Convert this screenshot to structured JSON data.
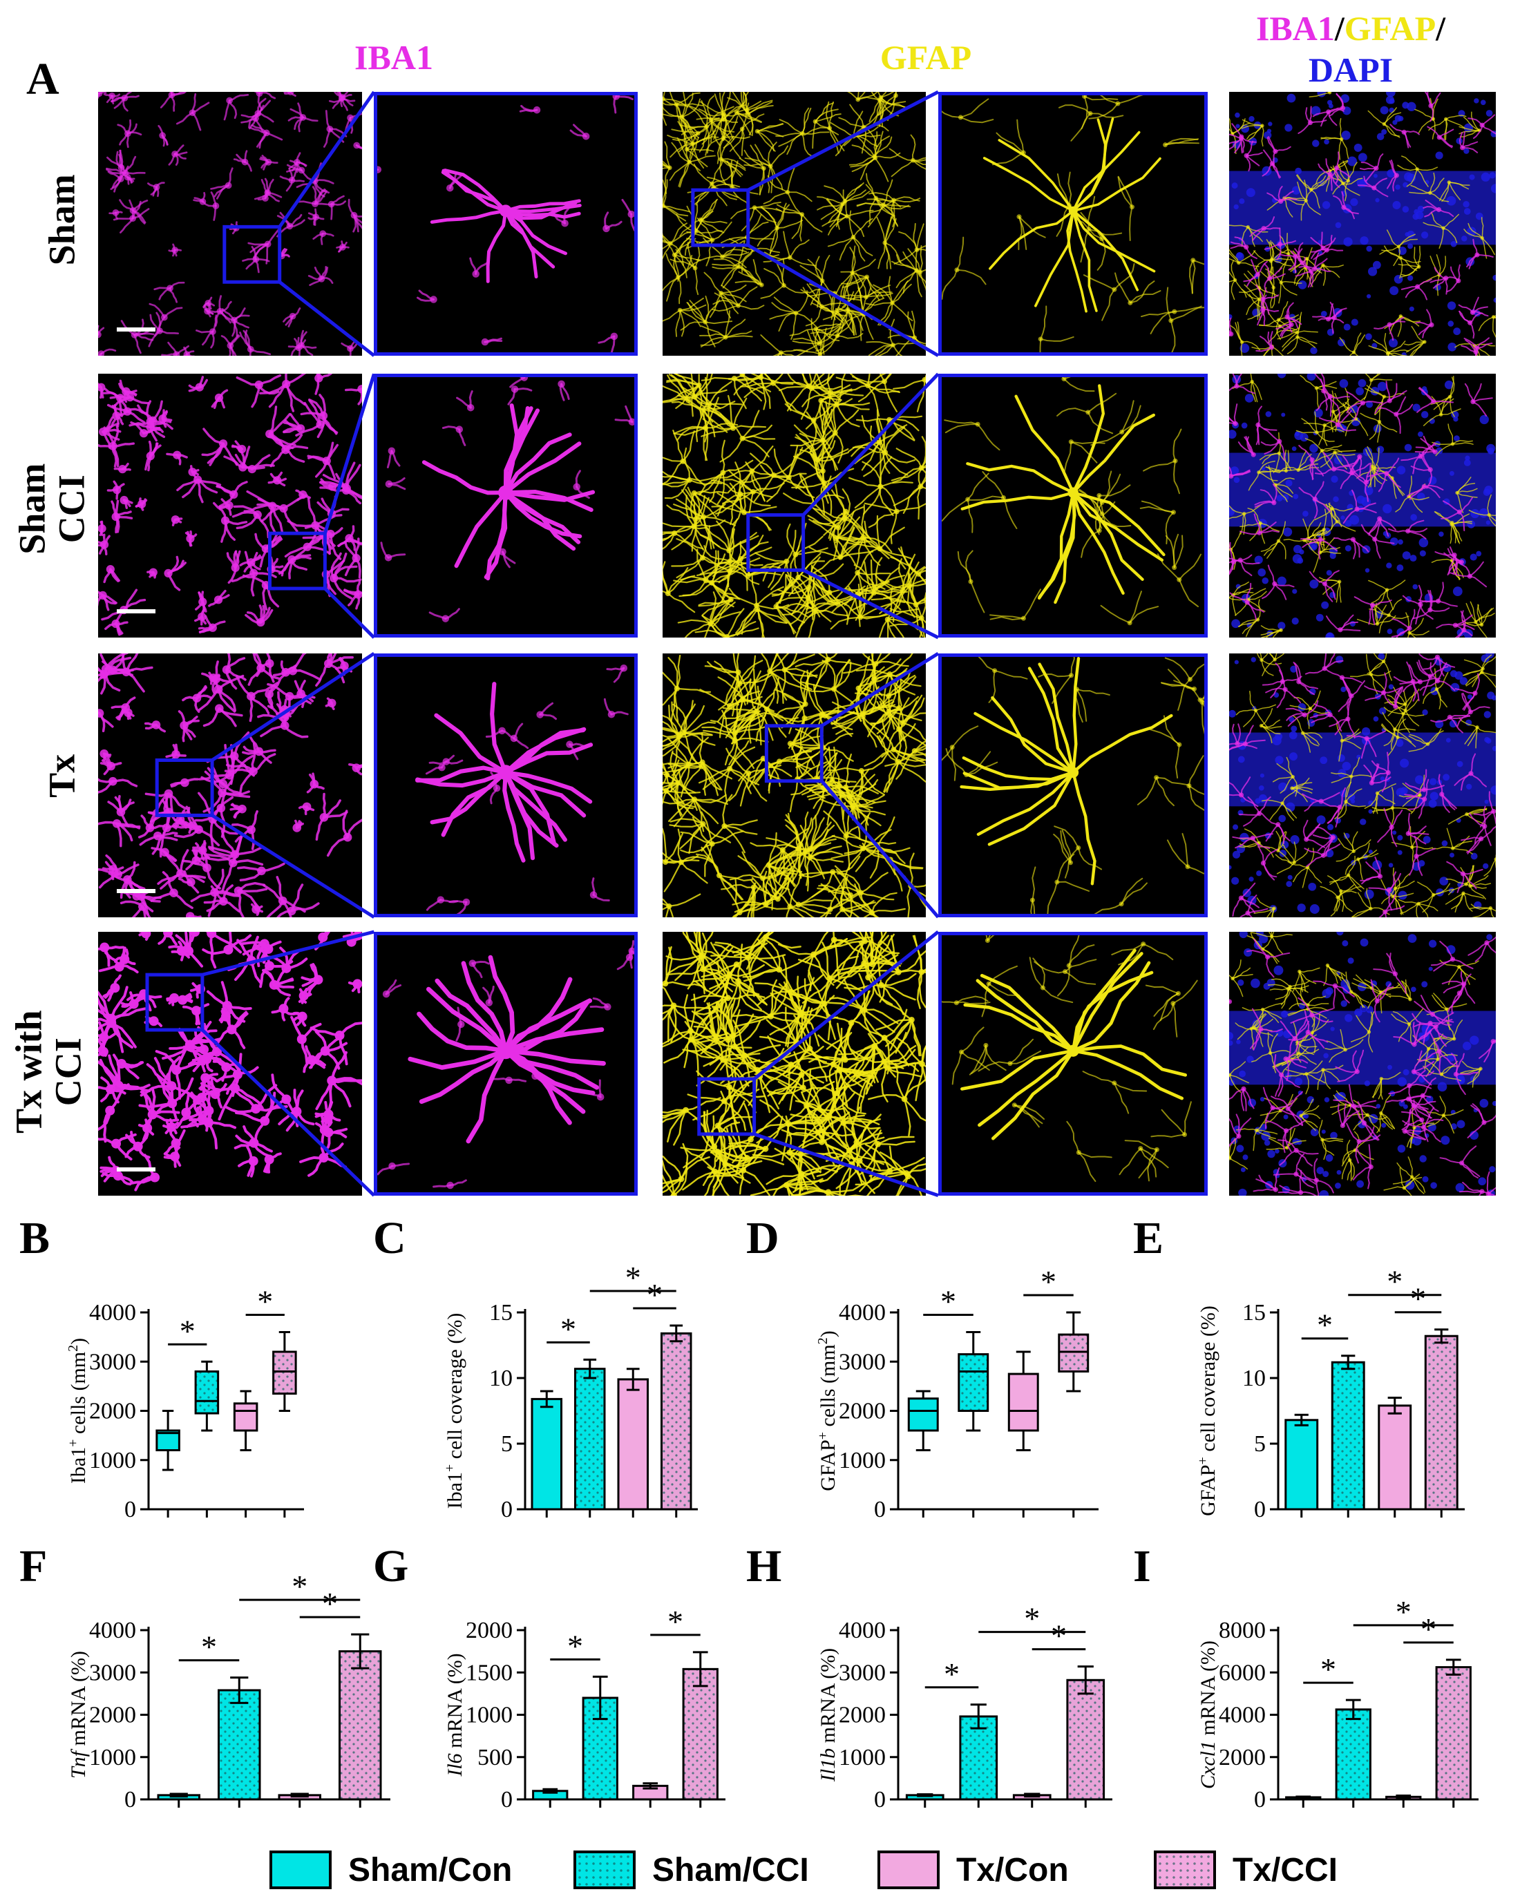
{
  "figure": {
    "panel_letters": {
      "A": "A",
      "B": "B",
      "C": "C",
      "D": "D",
      "E": "E",
      "F": "F",
      "G": "G",
      "H": "H",
      "I": "I"
    },
    "column_titles": {
      "iba1": "IBA1",
      "gfap": "GFAP",
      "merge_iba1": "IBA1",
      "merge_sep1": "/",
      "merge_gfap": "GFAP",
      "merge_sep2": "/",
      "merge_dapi": "DAPI"
    },
    "row_labels": [
      {
        "line1": "Sham",
        "line2": ""
      },
      {
        "line1": "Sham",
        "line2": "CCI"
      },
      {
        "line1": "Tx",
        "line2": ""
      },
      {
        "line1": "Tx with",
        "line2": "CCI"
      }
    ],
    "colors": {
      "iba1": "#e62ee6",
      "gfap": "#f0e614",
      "dapi": "#1e1ee6",
      "inset": "#1a1ae6",
      "sham": "#00e5e5",
      "tx": "#f2a9e0",
      "txcci": "#e8a3d8"
    }
  },
  "legend": [
    {
      "label": "Sham/Con",
      "color": "#00e5e5",
      "pattern": "solid"
    },
    {
      "label": "Sham/CCI",
      "color": "#00e5e5",
      "pattern": "dots"
    },
    {
      "label": "Tx/Con",
      "color": "#f2a9e0",
      "pattern": "solid"
    },
    {
      "label": "Tx/CCI",
      "color": "#f2a9e0",
      "pattern": "dots"
    }
  ],
  "chart_data": [
    {
      "panel": "B",
      "type": "box",
      "ylabel_parts": [
        "Iba1",
        "+",
        " cells (mm",
        "2",
        ")"
      ],
      "ylim": [
        0,
        4000
      ],
      "yticks": [
        "0",
        "1000",
        "2000",
        "3000",
        "4000"
      ],
      "ytick_values": [
        0,
        1000,
        2000,
        3000,
        4000
      ],
      "groups": [
        "Sham/Con",
        "Sham/CCI",
        "Tx/Con",
        "Tx/CCI"
      ],
      "boxes": [
        {
          "min": 800,
          "q1": 1200,
          "median": 1550,
          "q3": 1600,
          "max": 2000
        },
        {
          "min": 1600,
          "q1": 1950,
          "median": 2200,
          "q3": 2800,
          "max": 3000
        },
        {
          "min": 1200,
          "q1": 1600,
          "median": 2000,
          "q3": 2150,
          "max": 2400
        },
        {
          "min": 2000,
          "q1": 2350,
          "median": 2800,
          "q3": 3200,
          "max": 3600
        }
      ],
      "significance": [
        {
          "from": 0,
          "to": 1,
          "level": 1,
          "label": "*"
        },
        {
          "from": 2,
          "to": 3,
          "level": 1,
          "label": "*"
        }
      ]
    },
    {
      "panel": "C",
      "type": "bar",
      "ylabel_parts": [
        "Iba1",
        "+",
        " cell coverage (%)"
      ],
      "ylim": [
        0,
        15
      ],
      "yticks": [
        "0",
        "5",
        "10",
        "15"
      ],
      "ytick_values": [
        0,
        5,
        10,
        15
      ],
      "groups": [
        "Sham/Con",
        "Sham/CCI",
        "Tx/Con",
        "Tx/CCI"
      ],
      "values": [
        8.4,
        10.7,
        9.9,
        13.4
      ],
      "errors": [
        0.6,
        0.7,
        0.8,
        0.6
      ],
      "significance": [
        {
          "from": 0,
          "to": 1,
          "level": 1,
          "label": "*"
        },
        {
          "from": 2,
          "to": 3,
          "level": 1,
          "label": "*"
        },
        {
          "from": 1,
          "to": 3,
          "level": 2,
          "label": "*"
        }
      ]
    },
    {
      "panel": "D",
      "type": "box",
      "ylabel_parts": [
        "GFAP",
        "+",
        " cells (mm",
        "2",
        ")"
      ],
      "ylim": [
        0,
        4000
      ],
      "yticks": [
        "0",
        "1000",
        "2000",
        "3000",
        "4000"
      ],
      "ytick_values": [
        0,
        1000,
        2000,
        3000,
        4000
      ],
      "groups": [
        "Sham/Con",
        "Sham/CCI",
        "Tx/Con",
        "Tx/CCI"
      ],
      "boxes": [
        {
          "min": 1200,
          "q1": 1600,
          "median": 2000,
          "q3": 2250,
          "max": 2400
        },
        {
          "min": 1600,
          "q1": 2000,
          "median": 2800,
          "q3": 3150,
          "max": 3600
        },
        {
          "min": 1200,
          "q1": 1600,
          "median": 2000,
          "q3": 2750,
          "max": 3200
        },
        {
          "min": 2400,
          "q1": 2800,
          "median": 3200,
          "q3": 3550,
          "max": 4000
        }
      ],
      "significance": [
        {
          "from": 0,
          "to": 1,
          "level": 1,
          "label": "*"
        },
        {
          "from": 2,
          "to": 3,
          "level": 1,
          "label": "*"
        }
      ]
    },
    {
      "panel": "E",
      "type": "bar",
      "ylabel_parts": [
        "GFAP",
        "+",
        " cell coverage (%)"
      ],
      "ylim": [
        0,
        15
      ],
      "yticks": [
        "0",
        "5",
        "10",
        "15"
      ],
      "ytick_values": [
        0,
        5,
        10,
        15
      ],
      "groups": [
        "Sham/Con",
        "Sham/CCI",
        "Tx/Con",
        "Tx/CCI"
      ],
      "values": [
        6.8,
        11.2,
        7.9,
        13.2
      ],
      "errors": [
        0.4,
        0.5,
        0.6,
        0.5
      ],
      "significance": [
        {
          "from": 0,
          "to": 1,
          "level": 1,
          "label": "*"
        },
        {
          "from": 2,
          "to": 3,
          "level": 1,
          "label": "*"
        },
        {
          "from": 1,
          "to": 3,
          "level": 2,
          "label": "*"
        }
      ]
    },
    {
      "panel": "F",
      "type": "bar",
      "ylabel_parts": [
        "Tnf",
        "",
        " mRNA (%)"
      ],
      "ylim": [
        0,
        4000
      ],
      "yticks": [
        "0",
        "1000",
        "2000",
        "3000",
        "4000"
      ],
      "ytick_values": [
        0,
        1000,
        2000,
        3000,
        4000
      ],
      "groups": [
        "Sham/Con",
        "Sham/CCI",
        "Tx/Con",
        "Tx/CCI"
      ],
      "values": [
        100,
        2580,
        100,
        3500
      ],
      "errors": [
        30,
        300,
        30,
        400
      ],
      "significance": [
        {
          "from": 0,
          "to": 1,
          "level": 1,
          "label": "*"
        },
        {
          "from": 2,
          "to": 3,
          "level": 1,
          "label": "*"
        },
        {
          "from": 1,
          "to": 3,
          "level": 2,
          "label": "*"
        }
      ]
    },
    {
      "panel": "G",
      "type": "bar",
      "ylabel_parts": [
        "Il6",
        "",
        " mRNA (%)"
      ],
      "ylim": [
        0,
        2000
      ],
      "yticks": [
        "0",
        "500",
        "1000",
        "1500",
        "2000"
      ],
      "ytick_values": [
        0,
        500,
        1000,
        1500,
        2000
      ],
      "groups": [
        "Sham/Con",
        "Sham/CCI",
        "Tx/Con",
        "Tx/CCI"
      ],
      "values": [
        100,
        1200,
        160,
        1540
      ],
      "errors": [
        20,
        250,
        30,
        200
      ],
      "significance": [
        {
          "from": 0,
          "to": 1,
          "level": 1,
          "label": "*"
        },
        {
          "from": 2,
          "to": 3,
          "level": 1,
          "label": "*"
        }
      ]
    },
    {
      "panel": "H",
      "type": "bar",
      "ylabel_parts": [
        "Il1b",
        "",
        " mRNA (%)"
      ],
      "ylim": [
        0,
        4000
      ],
      "yticks": [
        "0",
        "1000",
        "2000",
        "3000",
        "4000"
      ],
      "ytick_values": [
        0,
        1000,
        2000,
        3000,
        4000
      ],
      "groups": [
        "Sham/Con",
        "Sham/CCI",
        "Tx/Con",
        "Tx/CCI"
      ],
      "values": [
        100,
        1960,
        100,
        2820
      ],
      "errors": [
        20,
        280,
        30,
        320
      ],
      "significance": [
        {
          "from": 0,
          "to": 1,
          "level": 1,
          "label": "*"
        },
        {
          "from": 2,
          "to": 3,
          "level": 1,
          "label": "*"
        },
        {
          "from": 1,
          "to": 3,
          "level": 2,
          "label": "*"
        }
      ]
    },
    {
      "panel": "I",
      "type": "bar",
      "ylabel_parts": [
        "Cxcl1",
        "",
        " mRNA (%)"
      ],
      "ylim": [
        0,
        8000
      ],
      "yticks": [
        "0",
        "2000",
        "4000",
        "6000",
        "8000"
      ],
      "ytick_values": [
        0,
        2000,
        4000,
        6000,
        8000
      ],
      "groups": [
        "Sham/Con",
        "Sham/CCI",
        "Tx/Con",
        "Tx/CCI"
      ],
      "values": [
        100,
        4250,
        120,
        6250
      ],
      "errors": [
        30,
        450,
        60,
        350
      ],
      "significance": [
        {
          "from": 0,
          "to": 1,
          "level": 1,
          "label": "*"
        },
        {
          "from": 2,
          "to": 3,
          "level": 1,
          "label": "*"
        },
        {
          "from": 1,
          "to": 3,
          "level": 2,
          "label": "*"
        }
      ]
    }
  ]
}
